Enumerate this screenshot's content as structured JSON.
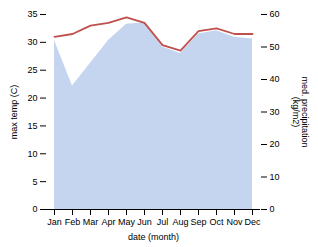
{
  "chart_data": {
    "type": "line",
    "categories": [
      "Jan",
      "Feb",
      "Mar",
      "Apr",
      "May",
      "Jun",
      "Jul",
      "Aug",
      "Sep",
      "Oct",
      "Nov",
      "Dec"
    ],
    "xlabel": "date (month)",
    "ylabel": "max temp (C)",
    "y2label": "med. precipitation\n(kg/m2)",
    "ylim": [
      0,
      35
    ],
    "yticks": [
      0,
      5,
      10,
      15,
      20,
      25,
      30,
      35
    ],
    "y2lim": [
      0,
      60
    ],
    "y2ticks": [
      0,
      10,
      20,
      30,
      40,
      50,
      60
    ],
    "grid": false,
    "series": [
      {
        "type": "area",
        "axis": "y2",
        "color": "#c5d5f0",
        "values": [
          52.0,
          38.0,
          45.0,
          52.0,
          57.0,
          57.5,
          50.0,
          48.0,
          54.0,
          55.0,
          53.0,
          52.5
        ]
      },
      {
        "type": "line",
        "color": "#c0504d",
        "values": [
          31.0,
          31.5,
          33.0,
          33.5,
          34.5,
          33.5,
          29.5,
          28.5,
          32.0,
          32.5,
          31.5,
          31.5
        ]
      }
    ]
  }
}
